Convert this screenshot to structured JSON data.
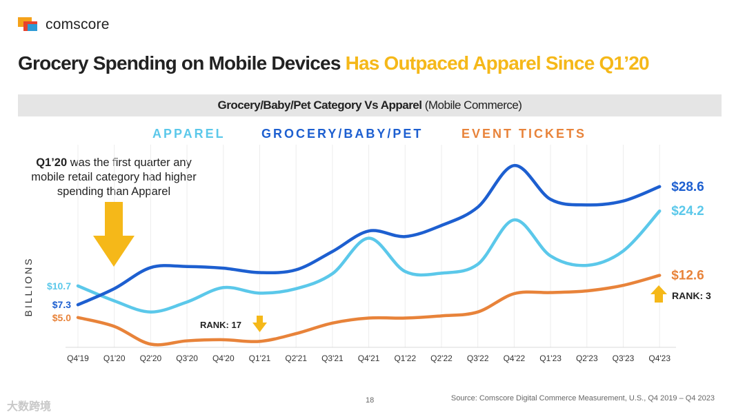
{
  "brand": {
    "name": "comscore"
  },
  "title": {
    "part1": "Grocery Spending on Mobile Devices ",
    "part2": "Has Outpaced Apparel Since Q1’20"
  },
  "subtitle": {
    "bold": "Grocery/Baby/Pet Category Vs Apparel",
    "normal": " (Mobile Commerce)"
  },
  "annotation": {
    "bold": "Q1’20",
    "rest": " was the first quarter any mobile retail category had higher spending than Apparel"
  },
  "rank_labels": {
    "q1_21": "RANK: 17",
    "q4_23": "RANK: 3"
  },
  "footer": {
    "page": "18",
    "source": "Source: Comscore Digital Commerce Measurement, U.S., Q4 2019 – Q4 2023",
    "watermark": "大数跨境"
  },
  "colors": {
    "apparel": "#5bc8ea",
    "grocery": "#1d5fd0",
    "event_tickets": "#e8833a",
    "arrow": "#f5b819"
  },
  "chart_data": {
    "type": "line",
    "ylabel": "BILLIONS",
    "x": [
      "Q4'19",
      "Q1'20",
      "Q2'20",
      "Q3'20",
      "Q4'20",
      "Q1'21",
      "Q2'21",
      "Q3'21",
      "Q4'21",
      "Q1'22",
      "Q2'22",
      "Q3'22",
      "Q4'22",
      "Q1'23",
      "Q2'23",
      "Q3'23",
      "Q4'23"
    ],
    "series": [
      {
        "name": "APPAREL",
        "color": "#5bc8ea",
        "values": [
          10.7,
          8.0,
          6.0,
          7.8,
          10.4,
          9.4,
          10.2,
          12.9,
          19.3,
          13.3,
          13.0,
          14.6,
          22.6,
          16.1,
          14.4,
          17.0,
          24.2
        ],
        "first_label": "$10.7",
        "last_label": "$24.2"
      },
      {
        "name": "GROCERY/BABY/PET",
        "color": "#1d5fd0",
        "values": [
          7.3,
          10.2,
          14.0,
          14.2,
          13.9,
          13.1,
          13.6,
          16.9,
          20.6,
          19.6,
          21.6,
          24.9,
          32.4,
          26.3,
          25.3,
          26.0,
          28.6
        ],
        "first_label": "$7.3",
        "last_label": "$28.6"
      },
      {
        "name": "EVENT TICKETS",
        "color": "#e8833a",
        "values": [
          5.0,
          3.4,
          0.2,
          0.8,
          1.0,
          0.7,
          2.1,
          4.0,
          4.9,
          4.9,
          5.3,
          6.0,
          9.3,
          9.5,
          9.8,
          10.8,
          12.6
        ],
        "first_label": "$5.0",
        "last_label": "$12.6"
      }
    ],
    "ylim": [
      0,
      36
    ],
    "grid": "vertical"
  }
}
